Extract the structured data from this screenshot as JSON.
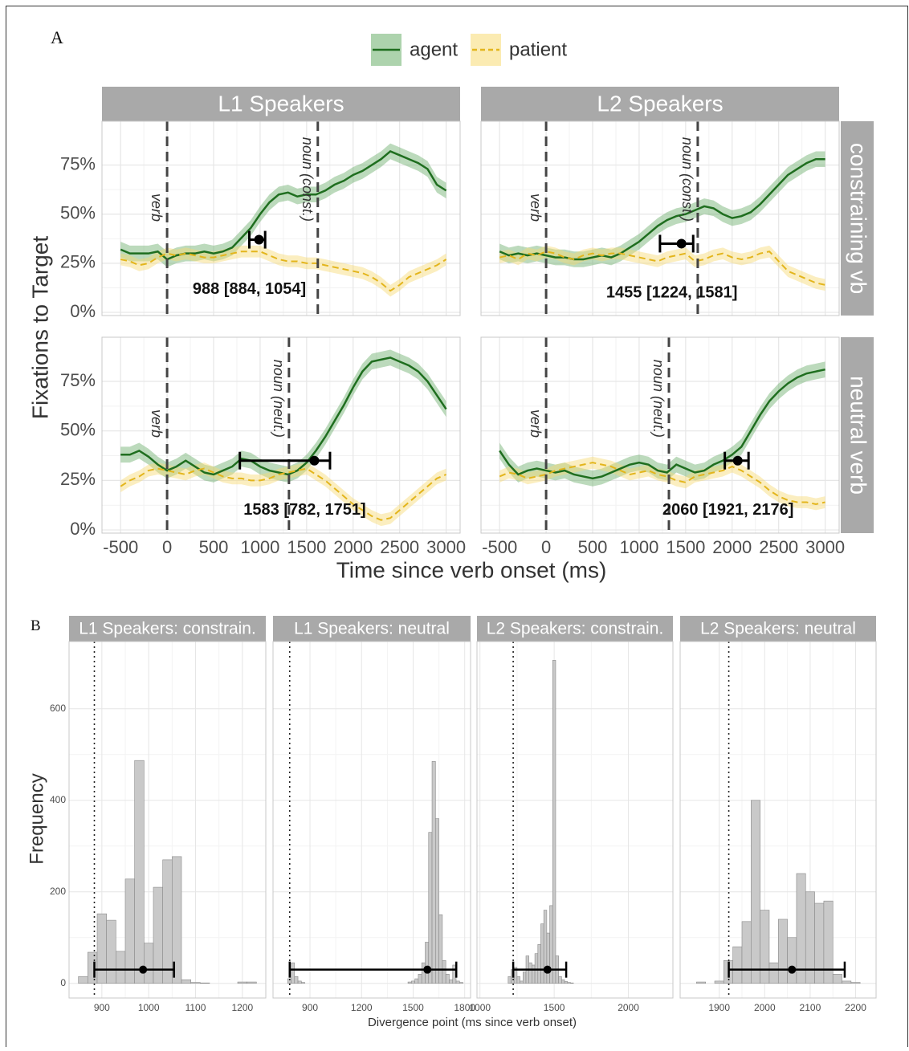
{
  "panel_labels": [
    "A",
    "B"
  ],
  "shared": {
    "column_titles": [
      "L1 Speakers",
      "L2 Speakers"
    ],
    "row_labels": [
      "constraining vb",
      "neutral verb"
    ],
    "a_ylabel": "Fixations to Target",
    "a_xlabel": "Time since verb onset (ms)",
    "b_ylabel": "Frequency",
    "b_xlabel": "Divergence point (ms since verb onset)"
  },
  "chart_data": [
    {
      "type": "line",
      "xlim": [
        -700,
        3150
      ],
      "ylim": [
        -1.6,
        97.3
      ],
      "xticks": [
        -500,
        0,
        500,
        1000,
        1500,
        2000,
        2500,
        3000
      ],
      "yticks": [
        {
          "value": 0,
          "label": "0%"
        },
        {
          "value": 25,
          "label": "25%"
        },
        {
          "value": 50,
          "label": "50%"
        },
        {
          "value": 75,
          "label": "75%"
        }
      ],
      "grid": true,
      "x": [
        -500,
        -400,
        -300,
        -200,
        -100,
        0,
        100,
        200,
        300,
        400,
        500,
        600,
        700,
        800,
        900,
        1000,
        1100,
        1200,
        1300,
        1400,
        1500,
        1600,
        1700,
        1800,
        1900,
        2000,
        2100,
        2200,
        2300,
        2400,
        2500,
        2600,
        2700,
        2800,
        2900,
        3000
      ],
      "series": [
        {
          "name": "agent",
          "color": "#1f6e1f",
          "ribbon_color": "#6aae6a",
          "ribbon": 4,
          "dash": false,
          "values": [
            32,
            30,
            30,
            30,
            31,
            27,
            29,
            30,
            30,
            31,
            30,
            31,
            33,
            38,
            43,
            50,
            56,
            60,
            61,
            59,
            60,
            60,
            62,
            65,
            67,
            70,
            72,
            75,
            78,
            82,
            80,
            78,
            76,
            73,
            65,
            62
          ]
        },
        {
          "name": "patient",
          "color": "#e3b51c",
          "ribbon_color": "#f7da73",
          "ribbon": 3,
          "dash": true,
          "values": [
            27,
            26,
            24,
            25,
            28,
            30,
            29,
            30,
            29,
            28,
            28,
            29,
            30,
            31,
            31,
            31,
            29,
            27,
            26,
            26,
            25,
            25,
            24,
            23,
            22,
            21,
            20,
            18,
            15,
            11,
            14,
            18,
            20,
            22,
            24,
            27
          ]
        }
      ],
      "markers": [
        {
          "x": 0,
          "label": "verb"
        },
        {
          "x": 1620,
          "label": "noun (const.)"
        }
      ],
      "estimate": {
        "x": 988,
        "low": 884,
        "high": 1054,
        "y": 37,
        "label": "988 [884, 1054]"
      }
    },
    {
      "type": "line",
      "xlim": [
        -700,
        3150
      ],
      "ylim": [
        -1.6,
        97.3
      ],
      "xticks": [
        -500,
        0,
        500,
        1000,
        1500,
        2000,
        2500,
        3000
      ],
      "yticks": [
        {
          "value": 0,
          "label": "0%"
        },
        {
          "value": 25,
          "label": "25%"
        },
        {
          "value": 50,
          "label": "50%"
        },
        {
          "value": 75,
          "label": "75%"
        }
      ],
      "grid": true,
      "x": [
        -500,
        -400,
        -300,
        -200,
        -100,
        0,
        100,
        200,
        300,
        400,
        500,
        600,
        700,
        800,
        900,
        1000,
        1100,
        1200,
        1300,
        1400,
        1500,
        1600,
        1700,
        1800,
        1900,
        2000,
        2100,
        2200,
        2300,
        2400,
        2500,
        2600,
        2700,
        2800,
        2900,
        3000
      ],
      "series": [
        {
          "name": "agent",
          "color": "#1f6e1f",
          "ribbon_color": "#6aae6a",
          "ribbon": 4,
          "dash": false,
          "values": [
            31,
            29,
            30,
            29,
            30,
            29,
            28,
            28,
            27,
            27,
            28,
            29,
            28,
            30,
            33,
            36,
            40,
            44,
            47,
            49,
            50,
            52,
            54,
            53,
            50,
            48,
            49,
            51,
            55,
            60,
            65,
            70,
            73,
            76,
            78,
            78
          ]
        },
        {
          "name": "patient",
          "color": "#e3b51c",
          "ribbon_color": "#f7da73",
          "ribbon": 3,
          "dash": true,
          "values": [
            28,
            29,
            27,
            30,
            29,
            31,
            30,
            28,
            27,
            29,
            30,
            29,
            30,
            30,
            29,
            28,
            27,
            26,
            28,
            29,
            30,
            26,
            27,
            29,
            30,
            28,
            27,
            28,
            30,
            31,
            26,
            21,
            19,
            17,
            15,
            14
          ]
        }
      ],
      "markers": [
        {
          "x": 0,
          "label": "verb"
        },
        {
          "x": 1630,
          "label": "noun (const.)"
        }
      ],
      "estimate": {
        "x": 1455,
        "low": 1224,
        "high": 1581,
        "y": 35,
        "label": "1455 [1224, 1581]"
      }
    },
    {
      "type": "line",
      "xlim": [
        -700,
        3150
      ],
      "ylim": [
        -1.6,
        97.3
      ],
      "xticks": [
        -500,
        0,
        500,
        1000,
        1500,
        2000,
        2500,
        3000
      ],
      "yticks": [
        {
          "value": 0,
          "label": "0%"
        },
        {
          "value": 25,
          "label": "25%"
        },
        {
          "value": 50,
          "label": "50%"
        },
        {
          "value": 75,
          "label": "75%"
        }
      ],
      "grid": true,
      "x": [
        -500,
        -400,
        -300,
        -200,
        -100,
        0,
        100,
        200,
        300,
        400,
        500,
        600,
        700,
        800,
        900,
        1000,
        1100,
        1200,
        1300,
        1400,
        1500,
        1600,
        1700,
        1800,
        1900,
        2000,
        2100,
        2200,
        2300,
        2400,
        2500,
        2600,
        2700,
        2800,
        2900,
        3000
      ],
      "series": [
        {
          "name": "agent",
          "color": "#1f6e1f",
          "ribbon_color": "#6aae6a",
          "ribbon": 4,
          "dash": false,
          "values": [
            38,
            38,
            40,
            37,
            33,
            30,
            32,
            35,
            32,
            29,
            28,
            30,
            32,
            36,
            35,
            32,
            30,
            29,
            28,
            30,
            34,
            40,
            47,
            55,
            63,
            72,
            80,
            85,
            86,
            87,
            85,
            83,
            80,
            75,
            68,
            61
          ]
        },
        {
          "name": "patient",
          "color": "#e3b51c",
          "ribbon_color": "#f7da73",
          "ribbon": 3,
          "dash": true,
          "values": [
            22,
            25,
            27,
            30,
            31,
            30,
            29,
            28,
            30,
            31,
            29,
            27,
            26,
            26,
            25,
            25,
            26,
            28,
            29,
            30,
            31,
            28,
            25,
            21,
            17,
            13,
            10,
            7,
            5,
            6,
            10,
            14,
            18,
            22,
            26,
            28
          ]
        }
      ],
      "markers": [
        {
          "x": 0,
          "label": "verb"
        },
        {
          "x": 1310,
          "label": "noun (neut.)"
        }
      ],
      "estimate": {
        "x": 1583,
        "low": 782,
        "high": 1751,
        "y": 35,
        "label": "1583 [782, 1751]"
      }
    },
    {
      "type": "line",
      "xlim": [
        -700,
        3150
      ],
      "ylim": [
        -1.6,
        97.3
      ],
      "xticks": [
        -500,
        0,
        500,
        1000,
        1500,
        2000,
        2500,
        3000
      ],
      "yticks": [
        {
          "value": 0,
          "label": "0%"
        },
        {
          "value": 25,
          "label": "25%"
        },
        {
          "value": 50,
          "label": "50%"
        },
        {
          "value": 75,
          "label": "75%"
        }
      ],
      "grid": true,
      "x": [
        -500,
        -400,
        -300,
        -200,
        -100,
        0,
        100,
        200,
        300,
        400,
        500,
        600,
        700,
        800,
        900,
        1000,
        1100,
        1200,
        1300,
        1400,
        1500,
        1600,
        1700,
        1800,
        1900,
        2000,
        2100,
        2200,
        2300,
        2400,
        2500,
        2600,
        2700,
        2800,
        2900,
        3000
      ],
      "series": [
        {
          "name": "agent",
          "color": "#1f6e1f",
          "ribbon_color": "#6aae6a",
          "ribbon": 4,
          "dash": false,
          "values": [
            40,
            33,
            28,
            30,
            31,
            30,
            29,
            30,
            28,
            27,
            26,
            27,
            29,
            31,
            33,
            34,
            33,
            30,
            29,
            33,
            31,
            29,
            30,
            33,
            35,
            38,
            42,
            50,
            58,
            65,
            70,
            74,
            77,
            79,
            80,
            81
          ]
        },
        {
          "name": "patient",
          "color": "#e3b51c",
          "ribbon_color": "#f7da73",
          "ribbon": 3,
          "dash": true,
          "values": [
            27,
            29,
            28,
            26,
            27,
            28,
            30,
            31,
            32,
            33,
            34,
            33,
            32,
            30,
            28,
            29,
            30,
            28,
            27,
            25,
            24,
            27,
            28,
            29,
            30,
            32,
            30,
            27,
            24,
            20,
            17,
            15,
            14,
            14,
            13,
            14
          ]
        }
      ],
      "markers": [
        {
          "x": 0,
          "label": "verb"
        },
        {
          "x": 1320,
          "label": "noun (neut.)"
        }
      ],
      "estimate": {
        "x": 2060,
        "low": 1921,
        "high": 2176,
        "y": 35,
        "label": "2060 [1921, 2176]"
      }
    },
    {
      "type": "histogram",
      "title": "L1 Speakers: constrain.",
      "color": "#c9c9c9",
      "grid": true,
      "xlim": [
        830,
        1250
      ],
      "ylim": [
        -32,
        747
      ],
      "xticks": [
        900,
        1000,
        1100,
        1200
      ],
      "yticks": [
        0,
        200,
        400,
        600
      ],
      "bins": [
        850,
        870,
        890,
        910,
        930,
        950,
        970,
        990,
        1010,
        1030,
        1050,
        1070,
        1090,
        1110,
        1130,
        1150,
        1170,
        1190,
        1210,
        1230
      ],
      "counts": [
        15,
        68,
        152,
        138,
        70,
        228,
        487,
        88,
        210,
        270,
        277,
        8,
        2,
        1,
        0,
        0,
        0,
        3,
        3
      ],
      "estimate": {
        "x": 988,
        "low": 884,
        "high": 1054,
        "y": 30
      }
    },
    {
      "type": "histogram",
      "title": "L1 Speakers: neutral",
      "color": "#c9c9c9",
      "grid": true,
      "xlim": [
        685,
        1834
      ],
      "ylim": [
        -32,
        747
      ],
      "xticks": [
        900,
        1200,
        1500,
        1800
      ],
      "yticks": [
        0,
        200,
        400,
        600
      ],
      "bins": [
        770,
        790,
        810,
        830,
        850,
        870,
        890,
        910,
        930,
        950,
        970,
        990,
        1010,
        1030,
        1050,
        1070,
        1090,
        1110,
        1130,
        1150,
        1170,
        1190,
        1210,
        1230,
        1250,
        1270,
        1290,
        1310,
        1330,
        1350,
        1370,
        1390,
        1410,
        1430,
        1450,
        1470,
        1490,
        1510,
        1530,
        1550,
        1570,
        1590,
        1610,
        1630,
        1650,
        1670,
        1690,
        1710,
        1730,
        1750,
        1770,
        1790
      ],
      "counts": [
        10,
        45,
        15,
        5,
        2,
        0,
        0,
        0,
        0,
        0,
        0,
        0,
        0,
        0,
        0,
        0,
        0,
        0,
        0,
        0,
        0,
        0,
        0,
        0,
        0,
        0,
        0,
        0,
        0,
        0,
        0,
        0,
        0,
        0,
        0,
        3,
        5,
        10,
        20,
        45,
        90,
        330,
        485,
        360,
        150,
        50,
        20,
        8,
        40,
        5,
        2
      ],
      "estimate": {
        "x": 1583,
        "low": 782,
        "high": 1751,
        "y": 30
      }
    },
    {
      "type": "histogram",
      "title": "L2 Speakers: constrain.",
      "color": "#c9c9c9",
      "grid": true,
      "xlim": [
        980,
        2300
      ],
      "ylim": [
        -32,
        747
      ],
      "xticks": [
        1000,
        1500,
        2000
      ],
      "yticks": [
        0,
        200,
        400,
        600
      ],
      "bins": [
        1190,
        1210,
        1230,
        1250,
        1270,
        1290,
        1310,
        1330,
        1350,
        1370,
        1390,
        1410,
        1430,
        1450,
        1470,
        1490,
        1510,
        1530,
        1550,
        1570,
        1590,
        1610,
        1630
      ],
      "counts": [
        15,
        30,
        35,
        15,
        5,
        25,
        60,
        45,
        40,
        65,
        85,
        130,
        160,
        110,
        170,
        706,
        60,
        15,
        8,
        4,
        2,
        1
      ],
      "estimate": {
        "x": 1455,
        "low": 1224,
        "high": 1581,
        "y": 30
      }
    },
    {
      "type": "histogram",
      "title": "L2 Speakers: neutral",
      "color": "#c9c9c9",
      "grid": true,
      "xlim": [
        1814,
        2245
      ],
      "ylim": [
        -32,
        747
      ],
      "xticks": [
        1900,
        2000,
        2100,
        2200
      ],
      "yticks": [
        0,
        200,
        400,
        600
      ],
      "bins": [
        1850,
        1870,
        1890,
        1910,
        1930,
        1950,
        1970,
        1990,
        2010,
        2030,
        2050,
        2070,
        2090,
        2110,
        2130,
        2150,
        2170,
        2190,
        2210
      ],
      "counts": [
        3,
        0,
        5,
        50,
        80,
        135,
        400,
        160,
        45,
        140,
        100,
        240,
        200,
        175,
        180,
        20,
        5,
        2
      ],
      "estimate": {
        "x": 2060,
        "low": 1921,
        "high": 2176,
        "y": 30
      }
    }
  ]
}
